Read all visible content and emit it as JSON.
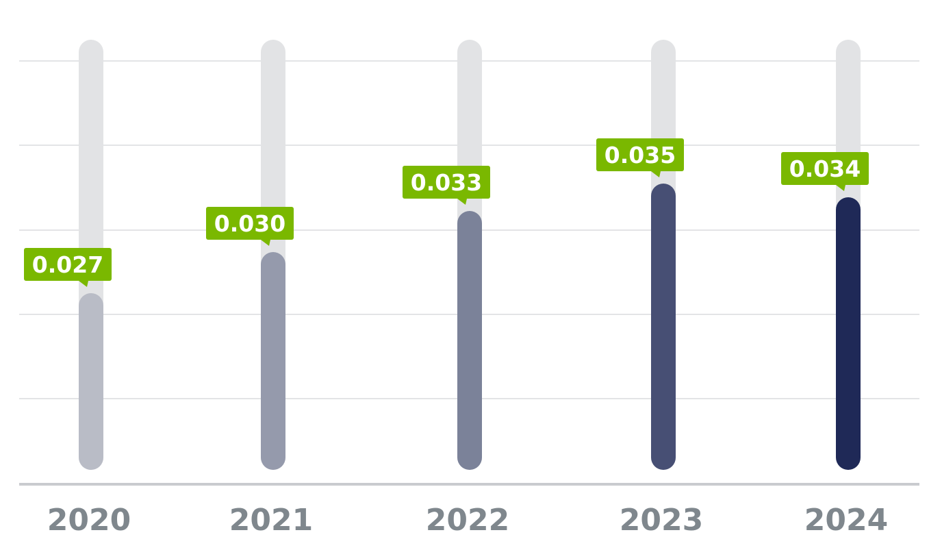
{
  "chart_data": {
    "type": "bar",
    "categories": [
      "2020",
      "2021",
      "2022",
      "2023",
      "2024"
    ],
    "values": [
      0.027,
      0.03,
      0.033,
      0.035,
      0.034
    ],
    "value_labels": [
      "0.027",
      "0.030",
      "0.033",
      "0.035",
      "0.034"
    ],
    "title": "",
    "xlabel": "",
    "ylabel": "",
    "ylim": [
      0,
      0.05
    ],
    "grid": true,
    "legend": "none",
    "colors": {
      "bars": [
        "#b9bcc6",
        "#959aac",
        "#7b8299",
        "#474f74",
        "#1f2957"
      ],
      "track": "#e2e3e5",
      "label_background": "#7ab800",
      "label_text": "#ffffff",
      "tick_text": "#7f878d",
      "grid": "#e3e4e6",
      "baseline": "#c9cbcf"
    }
  }
}
